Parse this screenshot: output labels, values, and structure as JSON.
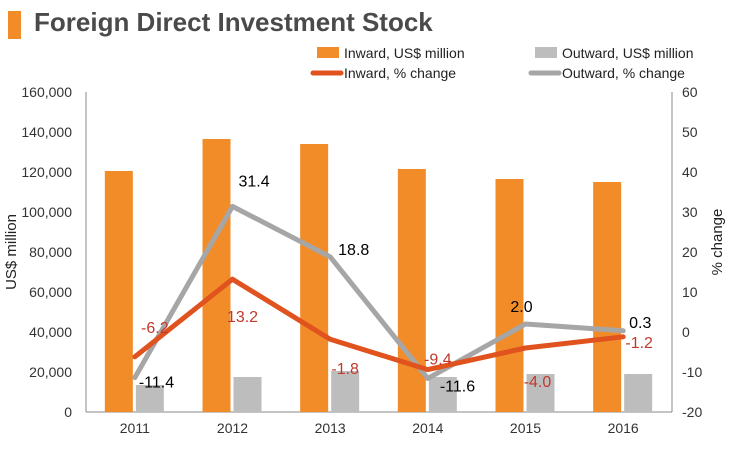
{
  "title": "Foreign Direct Investment Stock",
  "colors": {
    "accent": "#F28C28",
    "inward_bar": "#F28C28",
    "outward_bar": "#BDBDBD",
    "inward_line": "#E0521E",
    "outward_line": "#A6A6A6",
    "inward_label": "#C0392B"
  },
  "chart_data": {
    "type": "bar",
    "title": "Foreign Direct Investment Stock",
    "categories": [
      "2011",
      "2012",
      "2013",
      "2014",
      "2015",
      "2016"
    ],
    "ylabel": "US$ million",
    "y2label": "% change",
    "ylim": [
      0,
      160000
    ],
    "y2lim": [
      -20,
      60
    ],
    "yticks": [
      "0",
      "20,000",
      "40,000",
      "60,000",
      "80,000",
      "100,000",
      "120,000",
      "140,000",
      "160,000"
    ],
    "y2ticks": [
      "-20",
      "-10",
      "0",
      "10",
      "20",
      "30",
      "40",
      "50",
      "60"
    ],
    "legend_position": "top-right",
    "series": [
      {
        "name": "Inward, US$ million",
        "kind": "bar",
        "values": [
          120500,
          136500,
          134000,
          121500,
          116500,
          115000
        ]
      },
      {
        "name": "Outward, US$ million",
        "kind": "bar",
        "values": [
          13500,
          17500,
          20500,
          17500,
          19000,
          19000
        ]
      },
      {
        "name": "Inward, % change",
        "kind": "line",
        "axis": "right",
        "values": [
          -6.2,
          13.2,
          -1.8,
          -9.4,
          -4.0,
          -1.2
        ],
        "labels": [
          "-6.2",
          "13.2",
          "-1.8",
          "-9.4",
          "-4.0",
          "-1.2"
        ]
      },
      {
        "name": "Outward, % change",
        "kind": "line",
        "axis": "right",
        "values": [
          -11.4,
          31.4,
          18.8,
          -11.6,
          2.0,
          0.3
        ],
        "labels": [
          "-11.4",
          "31.4",
          "18.8",
          "-11.6",
          "2.0",
          "0.3"
        ]
      }
    ]
  }
}
